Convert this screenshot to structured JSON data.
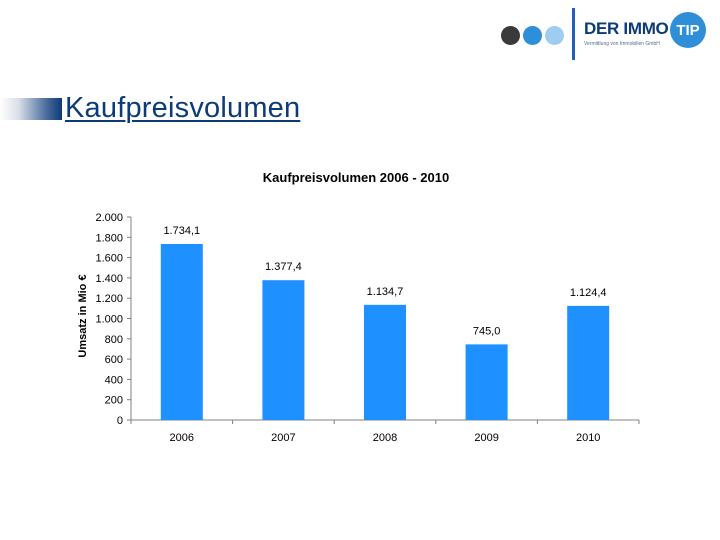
{
  "slide": {
    "title": "Kaufpreisvolumen"
  },
  "logo": {
    "name": "DER IMMO",
    "badge": "TIP",
    "tagline": "Vermittlung von Immobilien GmbH",
    "colors": {
      "dark": "#3a3a3a",
      "blue": "#2f8ed8",
      "light": "#9fcdef",
      "brand": "#0d3a78"
    }
  },
  "chart_data": {
    "type": "bar",
    "title": "Kaufpreisvolumen 2006 - 2010",
    "ylabel": "Umsatz in Mio €",
    "xlabel": "",
    "categories": [
      "2006",
      "2007",
      "2008",
      "2009",
      "2010"
    ],
    "values": [
      1734.1,
      1377.4,
      1134.7,
      745.0,
      1124.4
    ],
    "value_labels": [
      "1.734,1",
      "1.377,4",
      "1.134,7",
      "745,0",
      "1.124,4"
    ],
    "ylim": [
      0,
      2000
    ],
    "yticks": [
      0,
      200,
      400,
      600,
      800,
      1000,
      1200,
      1400,
      1600,
      1800,
      2000
    ],
    "ytick_labels": [
      "0",
      "200",
      "400",
      "600",
      "800",
      "1.000",
      "1.200",
      "1.400",
      "1.600",
      "1.800",
      "2.000"
    ],
    "bar_color": "#1e90ff",
    "grid": false,
    "legend": "none"
  }
}
